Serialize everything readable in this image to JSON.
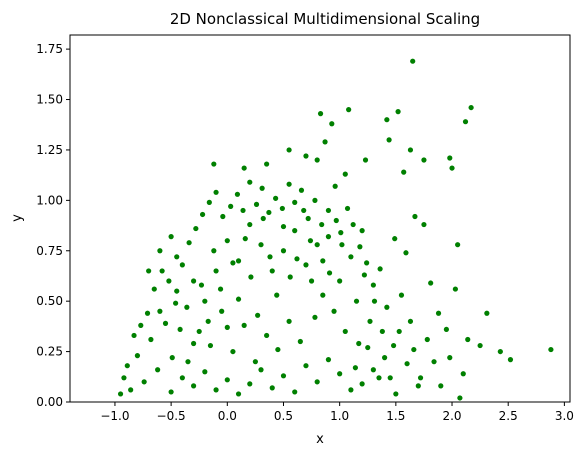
{
  "chart_data": {
    "type": "scatter",
    "title": "2D Nonclassical Multidimensional Scaling",
    "xlabel": "x",
    "ylabel": "y",
    "xlim": [
      -1.4,
      3.05
    ],
    "ylim": [
      0.0,
      1.82
    ],
    "xticks": [
      -1.0,
      -0.5,
      0.0,
      0.5,
      1.0,
      1.5,
      2.0,
      2.5,
      3.0
    ],
    "xtick_labels": [
      "−1.0",
      "−0.5",
      "0.0",
      "0.5",
      "1.0",
      "1.5",
      "2.0",
      "2.5",
      "3.0"
    ],
    "yticks": [
      0.0,
      0.25,
      0.5,
      0.75,
      1.0,
      1.25,
      1.5,
      1.75
    ],
    "ytick_labels": [
      "0.00",
      "0.25",
      "0.50",
      "0.75",
      "1.00",
      "1.25",
      "1.50",
      "1.75"
    ],
    "grid": false,
    "marker_color": "#008000",
    "series": [
      {
        "points": [
          [
            1.65,
            1.69
          ],
          [
            2.17,
            1.46
          ],
          [
            2.12,
            1.39
          ],
          [
            1.08,
            1.45
          ],
          [
            0.83,
            1.43
          ],
          [
            1.52,
            1.44
          ],
          [
            1.42,
            1.4
          ],
          [
            0.93,
            1.38
          ],
          [
            0.87,
            1.29
          ],
          [
            0.55,
            1.25
          ],
          [
            1.63,
            1.25
          ],
          [
            1.44,
            1.3
          ],
          [
            1.98,
            1.21
          ],
          [
            2.0,
            1.16
          ],
          [
            1.23,
            1.2
          ],
          [
            1.75,
            1.2
          ],
          [
            1.57,
            1.14
          ],
          [
            0.8,
            1.2
          ],
          [
            0.35,
            1.18
          ],
          [
            0.15,
            1.16
          ],
          [
            -0.12,
            1.18
          ],
          [
            0.7,
            1.22
          ],
          [
            1.05,
            1.13
          ],
          [
            2.88,
            0.26
          ],
          [
            2.52,
            0.21
          ],
          [
            2.43,
            0.25
          ],
          [
            2.31,
            0.44
          ],
          [
            2.25,
            0.28
          ],
          [
            2.14,
            0.31
          ],
          [
            2.05,
            0.78
          ],
          [
            2.03,
            0.56
          ],
          [
            2.1,
            0.14
          ],
          [
            2.07,
            0.02
          ],
          [
            1.98,
            0.22
          ],
          [
            1.88,
            0.44
          ],
          [
            1.81,
            0.59
          ],
          [
            1.75,
            0.88
          ],
          [
            1.67,
            0.92
          ],
          [
            1.59,
            0.74
          ],
          [
            1.49,
            0.81
          ],
          [
            1.63,
            0.4
          ],
          [
            1.55,
            0.53
          ],
          [
            1.45,
            0.12
          ],
          [
            1.4,
            0.22
          ],
          [
            1.38,
            0.35
          ],
          [
            1.31,
            0.5
          ],
          [
            1.22,
            0.63
          ],
          [
            1.27,
            0.4
          ],
          [
            1.17,
            0.29
          ],
          [
            1.14,
            0.17
          ],
          [
            1.1,
            0.06
          ],
          [
            1.02,
            0.78
          ],
          [
            0.97,
            0.9
          ],
          [
            0.91,
            0.64
          ],
          [
            0.85,
            0.53
          ],
          [
            0.78,
            0.42
          ],
          [
            0.74,
            0.8
          ],
          [
            0.68,
            0.95
          ],
          [
            0.62,
            0.71
          ],
          [
            0.56,
            0.62
          ],
          [
            0.5,
            0.87
          ],
          [
            0.44,
            0.53
          ],
          [
            0.38,
            0.72
          ],
          [
            0.32,
            0.91
          ],
          [
            0.27,
            0.43
          ],
          [
            0.21,
            0.62
          ],
          [
            0.16,
            0.81
          ],
          [
            0.1,
            0.51
          ],
          [
            0.05,
            0.69
          ],
          [
            0.0,
            0.37
          ],
          [
            -0.06,
            0.56
          ],
          [
            -0.12,
            0.75
          ],
          [
            -0.17,
            0.4
          ],
          [
            -0.23,
            0.58
          ],
          [
            -0.3,
            0.29
          ],
          [
            -0.36,
            0.47
          ],
          [
            -0.42,
            0.36
          ],
          [
            -0.49,
            0.22
          ],
          [
            -0.55,
            0.39
          ],
          [
            -0.62,
            0.16
          ],
          [
            -0.68,
            0.31
          ],
          [
            -0.74,
            0.1
          ],
          [
            -0.8,
            0.23
          ],
          [
            -0.86,
            0.06
          ],
          [
            -0.92,
            0.12
          ],
          [
            -0.95,
            0.04
          ],
          [
            -0.89,
            0.18
          ],
          [
            -0.83,
            0.33
          ],
          [
            -0.77,
            0.38
          ],
          [
            -0.71,
            0.44
          ],
          [
            -0.65,
            0.56
          ],
          [
            -0.58,
            0.65
          ],
          [
            -0.52,
            0.6
          ],
          [
            -0.46,
            0.49
          ],
          [
            -0.4,
            0.68
          ],
          [
            -0.34,
            0.79
          ],
          [
            -0.28,
            0.86
          ],
          [
            -0.22,
            0.93
          ],
          [
            -0.16,
            0.99
          ],
          [
            -0.1,
            1.04
          ],
          [
            -0.04,
            0.92
          ],
          [
            0.03,
            0.97
          ],
          [
            0.09,
            1.03
          ],
          [
            0.14,
            0.95
          ],
          [
            0.2,
            1.09
          ],
          [
            0.26,
            0.98
          ],
          [
            0.31,
            1.06
          ],
          [
            0.37,
            0.94
          ],
          [
            0.43,
            1.01
          ],
          [
            0.49,
            0.96
          ],
          [
            0.55,
            1.08
          ],
          [
            0.6,
            0.99
          ],
          [
            0.66,
            1.05
          ],
          [
            0.72,
            0.91
          ],
          [
            0.78,
            1.0
          ],
          [
            0.84,
            0.88
          ],
          [
            0.9,
            0.95
          ],
          [
            0.96,
            1.07
          ],
          [
            1.01,
            0.84
          ],
          [
            1.07,
            0.96
          ],
          [
            1.12,
            0.88
          ],
          [
            1.18,
            0.77
          ],
          [
            1.24,
            0.69
          ],
          [
            1.3,
            0.58
          ],
          [
            1.36,
            0.66
          ],
          [
            1.42,
            0.47
          ],
          [
            1.48,
            0.28
          ],
          [
            1.53,
            0.35
          ],
          [
            1.6,
            0.19
          ],
          [
            1.66,
            0.26
          ],
          [
            1.72,
            0.12
          ],
          [
            1.78,
            0.31
          ],
          [
            1.84,
            0.2
          ],
          [
            1.9,
            0.08
          ],
          [
            1.95,
            0.36
          ],
          [
            -0.5,
            0.05
          ],
          [
            -0.4,
            0.12
          ],
          [
            -0.3,
            0.08
          ],
          [
            -0.2,
            0.15
          ],
          [
            -0.1,
            0.06
          ],
          [
            0.0,
            0.11
          ],
          [
            0.1,
            0.04
          ],
          [
            0.2,
            0.09
          ],
          [
            0.3,
            0.16
          ],
          [
            0.4,
            0.07
          ],
          [
            0.5,
            0.13
          ],
          [
            0.6,
            0.05
          ],
          [
            0.7,
            0.18
          ],
          [
            0.8,
            0.1
          ],
          [
            0.9,
            0.21
          ],
          [
            1.0,
            0.14
          ],
          [
            1.2,
            0.09
          ],
          [
            1.3,
            0.16
          ],
          [
            1.5,
            0.04
          ],
          [
            1.7,
            0.08
          ],
          [
            -0.6,
            0.45
          ],
          [
            -0.45,
            0.55
          ],
          [
            -0.35,
            0.2
          ],
          [
            -0.25,
            0.35
          ],
          [
            -0.15,
            0.28
          ],
          [
            -0.05,
            0.45
          ],
          [
            0.05,
            0.25
          ],
          [
            0.15,
            0.38
          ],
          [
            0.25,
            0.2
          ],
          [
            0.35,
            0.33
          ],
          [
            0.45,
            0.26
          ],
          [
            0.55,
            0.4
          ],
          [
            0.65,
            0.3
          ],
          [
            0.75,
            0.6
          ],
          [
            0.85,
            0.7
          ],
          [
            0.95,
            0.45
          ],
          [
            1.05,
            0.35
          ],
          [
            1.15,
            0.5
          ],
          [
            1.25,
            0.27
          ],
          [
            1.35,
            0.12
          ],
          [
            -0.7,
            0.65
          ],
          [
            -0.6,
            0.75
          ],
          [
            -0.5,
            0.82
          ],
          [
            -0.45,
            0.72
          ],
          [
            -0.3,
            0.6
          ],
          [
            -0.2,
            0.5
          ],
          [
            -0.1,
            0.65
          ],
          [
            0.0,
            0.8
          ],
          [
            0.1,
            0.7
          ],
          [
            0.2,
            0.88
          ],
          [
            0.3,
            0.78
          ],
          [
            0.4,
            0.65
          ],
          [
            0.5,
            0.75
          ],
          [
            0.6,
            0.85
          ],
          [
            0.7,
            0.68
          ],
          [
            0.8,
            0.78
          ],
          [
            0.9,
            0.82
          ],
          [
            1.0,
            0.6
          ],
          [
            1.1,
            0.72
          ],
          [
            1.2,
            0.85
          ]
        ]
      }
    ]
  }
}
